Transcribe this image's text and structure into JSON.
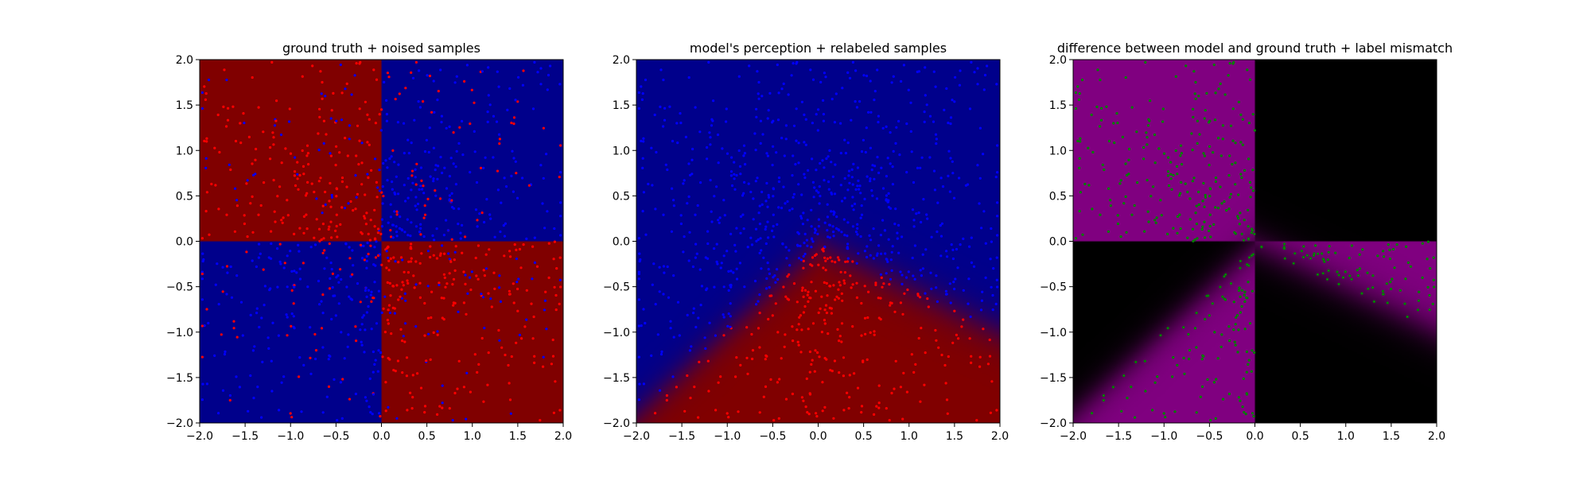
{
  "chart_data": [
    {
      "type": "heatmap",
      "title": "ground truth + noised samples",
      "xlabel": "",
      "ylabel": "",
      "xlim": [
        -2.0,
        2.0
      ],
      "ylim": [
        -2.0,
        2.0
      ],
      "xticks": [
        "−2.0",
        "−1.5",
        "−1.0",
        "−0.5",
        "0.0",
        "0.5",
        "1.0",
        "1.5",
        "2.0"
      ],
      "yticks": [
        "−2.0",
        "−1.5",
        "−1.0",
        "−0.5",
        "0.0",
        "0.5",
        "1.0",
        "1.5",
        "2.0"
      ],
      "grid": false,
      "background": "XOR quadrants: red where x<0,y>0 and x>0,y<0; blue otherwise",
      "region_colors": {
        "red": "#800000",
        "blue": "#00008b"
      },
      "points": {
        "count": 1000,
        "colors": [
          "#ff0000",
          "#0000ff"
        ],
        "distribution": "uniform in [-2,2]², colored by noisy XOR label"
      }
    },
    {
      "type": "heatmap",
      "title": "model's perception + relabeled samples",
      "xlabel": "",
      "ylabel": "",
      "xlim": [
        -2.0,
        2.0
      ],
      "ylim": [
        -2.0,
        2.0
      ],
      "xticks": [
        "−2.0",
        "−1.5",
        "−1.0",
        "−0.5",
        "0.0",
        "0.5",
        "1.0",
        "1.5",
        "2.0"
      ],
      "yticks": [
        "−2.0",
        "−1.5",
        "−1.0",
        "−0.5",
        "0.0",
        "0.5",
        "1.0",
        "1.5",
        "2.0"
      ],
      "grid": false,
      "background": "model decision: red wedge below lines y = 0.93x − 0.06 (x<0) and y = −0.48x − 0.04 (x>0); blue above",
      "region_colors": {
        "red": "#800000",
        "blue": "#00008b"
      },
      "points": {
        "count": 1000,
        "colors": [
          "#ff0000",
          "#0000ff"
        ],
        "distribution": "denser near origin, colored by model label"
      }
    },
    {
      "type": "heatmap",
      "title": "difference between model and ground truth + label mismatch",
      "xlabel": "",
      "ylabel": "",
      "xlim": [
        -2.0,
        2.0
      ],
      "ylim": [
        -2.0,
        2.0
      ],
      "xticks": [
        "−2.0",
        "−1.5",
        "−1.0",
        "−0.5",
        "0.0",
        "0.5",
        "1.0",
        "1.5",
        "2.0"
      ],
      "yticks": [
        "−2.0",
        "−1.5",
        "−1.0",
        "−0.5",
        "0.0",
        "0.5",
        "1.0",
        "1.5",
        "2.0"
      ],
      "grid": false,
      "background": "purple where model and ground truth disagree, black where they agree",
      "region_colors": {
        "mismatch": "#800080",
        "match": "#000000"
      },
      "points": {
        "count": 420,
        "colors": [
          "#008000"
        ],
        "distribution": "mismatched samples near boundaries"
      }
    }
  ]
}
